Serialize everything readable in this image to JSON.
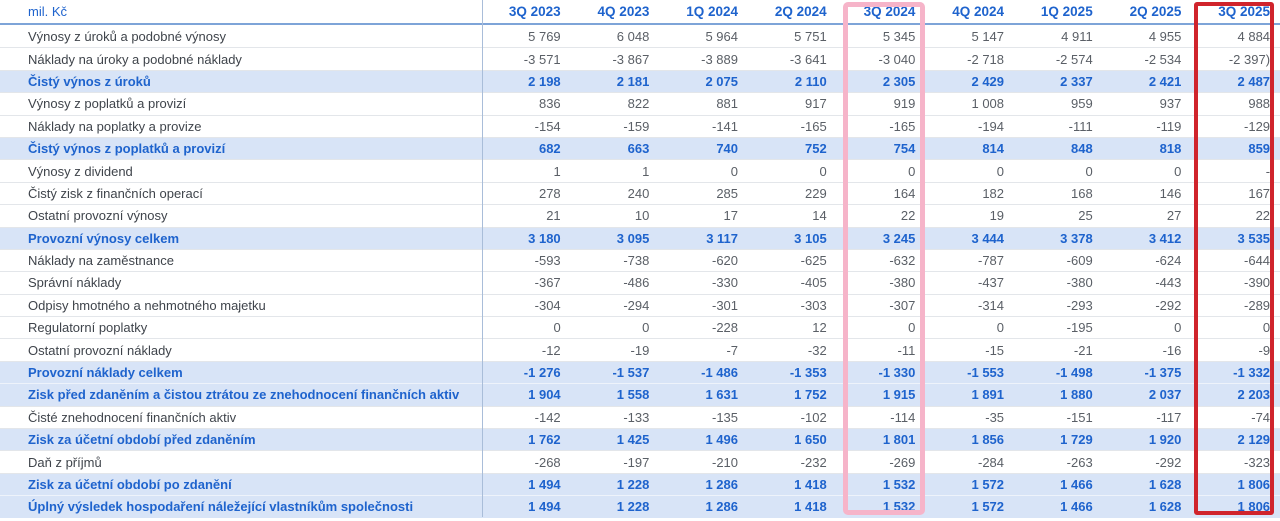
{
  "colors": {
    "accent_blue": "#1e63cd",
    "emphasis_row_bg": "#d8e4f7",
    "pink_highlight_border": "#f6b4c9",
    "red_highlight_border": "#d0242c",
    "number_text": "#5a5f66",
    "label_text": "#3f444b",
    "row_divider": "#e3e6ea",
    "header_underline": "#7ea4d8",
    "column_divider": "#a9bdd9"
  },
  "chart_data": {
    "type": "table",
    "title": "",
    "unit": "mil. Kč",
    "columns": [
      "3Q 2023",
      "4Q 2023",
      "1Q 2024",
      "2Q 2024",
      "3Q 2024",
      "4Q 2024",
      "1Q 2025",
      "2Q 2025",
      "3Q 2025"
    ],
    "highlights": {
      "boxed_columns": [
        {
          "column": "3Q 2024",
          "style": "pink-outline"
        },
        {
          "column": "3Q 2025",
          "style": "red-outline"
        }
      ],
      "emphasis_rows_style": "bold blue text on light blue background"
    },
    "rows": [
      {
        "label": "Výnosy z úroků a podobné výnosy",
        "emphasis": false,
        "values": [
          "5 769",
          "6 048",
          "5 964",
          "5 751",
          "5 345",
          "5 147",
          "4 911",
          "4 955",
          "4 884"
        ]
      },
      {
        "label": "Náklady na úroky a podobné náklady",
        "emphasis": false,
        "values": [
          "-3 571",
          "-3 867",
          "-3 889",
          "-3 641",
          "-3 040",
          "-2 718",
          "-2 574",
          "-2 534",
          "-2 397)"
        ]
      },
      {
        "label": "Čistý výnos z úroků",
        "emphasis": true,
        "values": [
          "2 198",
          "2 181",
          "2 075",
          "2 110",
          "2 305",
          "2 429",
          "2 337",
          "2 421",
          "2 487"
        ]
      },
      {
        "label": "Výnosy z poplatků a provizí",
        "emphasis": false,
        "values": [
          "836",
          "822",
          "881",
          "917",
          "919",
          "1 008",
          "959",
          "937",
          "988"
        ]
      },
      {
        "label": "Náklady na poplatky a provize",
        "emphasis": false,
        "values": [
          "-154",
          "-159",
          "-141",
          "-165",
          "-165",
          "-194",
          "-111",
          "-119",
          "-129"
        ]
      },
      {
        "label": "Čistý výnos z poplatků a provizí",
        "emphasis": true,
        "values": [
          "682",
          "663",
          "740",
          "752",
          "754",
          "814",
          "848",
          "818",
          "859"
        ]
      },
      {
        "label": "Výnosy z dividend",
        "emphasis": false,
        "values": [
          "1",
          "1",
          "0",
          "0",
          "0",
          "0",
          "0",
          "0",
          "-"
        ]
      },
      {
        "label": "Čistý zisk z finančních operací",
        "emphasis": false,
        "values": [
          "278",
          "240",
          "285",
          "229",
          "164",
          "182",
          "168",
          "146",
          "167"
        ]
      },
      {
        "label": "Ostatní provozní výnosy",
        "emphasis": false,
        "values": [
          "21",
          "10",
          "17",
          "14",
          "22",
          "19",
          "25",
          "27",
          "22"
        ]
      },
      {
        "label": "Provozní výnosy celkem",
        "emphasis": true,
        "values": [
          "3 180",
          "3 095",
          "3 117",
          "3 105",
          "3 245",
          "3 444",
          "3 378",
          "3 412",
          "3 535"
        ]
      },
      {
        "label": "Náklady na zaměstnance",
        "emphasis": false,
        "values": [
          "-593",
          "-738",
          "-620",
          "-625",
          "-632",
          "-787",
          "-609",
          "-624",
          "-644"
        ]
      },
      {
        "label": "Správní náklady",
        "emphasis": false,
        "values": [
          "-367",
          "-486",
          "-330",
          "-405",
          "-380",
          "-437",
          "-380",
          "-443",
          "-390"
        ]
      },
      {
        "label": "Odpisy hmotného a nehmotného majetku",
        "emphasis": false,
        "values": [
          "-304",
          "-294",
          "-301",
          "-303",
          "-307",
          "-314",
          "-293",
          "-292",
          "-289"
        ]
      },
      {
        "label": "Regulatorní poplatky",
        "emphasis": false,
        "values": [
          "0",
          "0",
          "-228",
          "12",
          "0",
          "0",
          "-195",
          "0",
          "0"
        ]
      },
      {
        "label": "Ostatní provozní náklady",
        "emphasis": false,
        "values": [
          "-12",
          "-19",
          "-7",
          "-32",
          "-11",
          "-15",
          "-21",
          "-16",
          "-9"
        ]
      },
      {
        "label": "Provozní náklady celkem",
        "emphasis": true,
        "values": [
          "-1 276",
          "-1 537",
          "-1 486",
          "-1 353",
          "-1 330",
          "-1 553",
          "-1 498",
          "-1 375",
          "-1 332"
        ]
      },
      {
        "label": "Zisk před zdaněním a čistou ztrátou ze znehodnocení finančních aktiv",
        "emphasis": true,
        "values": [
          "1 904",
          "1 558",
          "1 631",
          "1 752",
          "1 915",
          "1 891",
          "1 880",
          "2 037",
          "2 203"
        ]
      },
      {
        "label": "Čisté znehodnocení finančních aktiv",
        "emphasis": false,
        "values": [
          "-142",
          "-133",
          "-135",
          "-102",
          "-114",
          "-35",
          "-151",
          "-117",
          "-74"
        ]
      },
      {
        "label": "Zisk za účetní období před zdaněním",
        "emphasis": true,
        "values": [
          "1 762",
          "1 425",
          "1 496",
          "1 650",
          "1 801",
          "1 856",
          "1 729",
          "1 920",
          "2 129"
        ]
      },
      {
        "label": "Daň z příjmů",
        "emphasis": false,
        "values": [
          "-268",
          "-197",
          "-210",
          "-232",
          "-269",
          "-284",
          "-263",
          "-292",
          "-323"
        ]
      },
      {
        "label": "Zisk za účetní období po zdanění",
        "emphasis": true,
        "values": [
          "1 494",
          "1 228",
          "1 286",
          "1 418",
          "1 532",
          "1 572",
          "1 466",
          "1 628",
          "1 806"
        ]
      },
      {
        "label": "Úplný výsledek hospodaření náležející vlastníkům společnosti",
        "emphasis": true,
        "values": [
          "1 494",
          "1 228",
          "1 286",
          "1 418",
          "1 532",
          "1 572",
          "1 466",
          "1 628",
          "1 806"
        ]
      }
    ]
  }
}
